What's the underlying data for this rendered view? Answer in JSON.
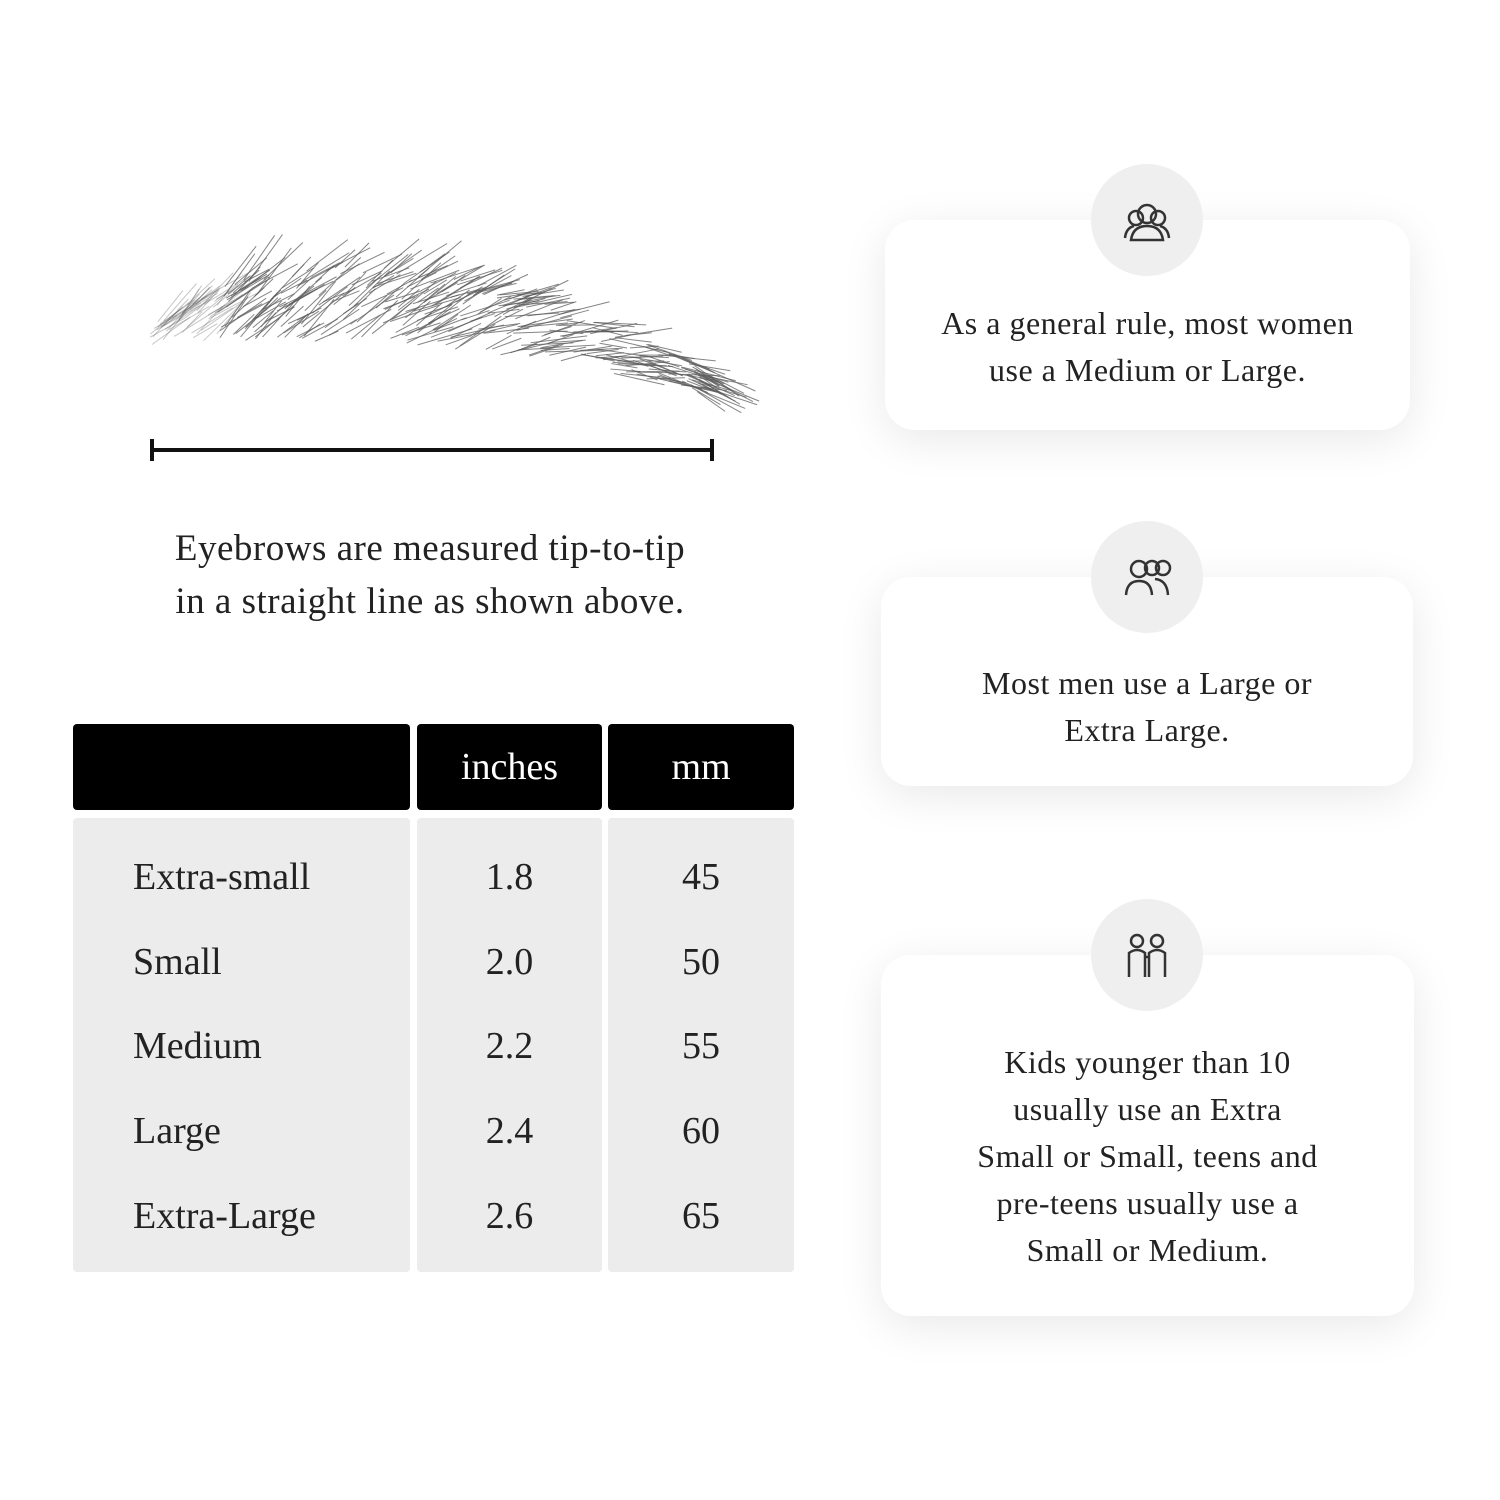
{
  "caption": {
    "lines": [
      "Eyebrows are measured tip-to-tip",
      "in a straight line as shown above."
    ]
  },
  "table": {
    "header": [
      "inches",
      "mm"
    ],
    "rows": [
      [
        "Extra-small",
        "1.8",
        "45"
      ],
      [
        "Small",
        "2.0",
        "50"
      ],
      [
        "Medium",
        "2.2",
        "55"
      ],
      [
        "Large",
        "2.4",
        "60"
      ],
      [
        "Extra-Large",
        "2.6",
        "65"
      ]
    ]
  },
  "cards": [
    {
      "lines": [
        "As a general rule, most women",
        "use a Medium or Large."
      ]
    },
    {
      "lines": [
        "Most men use a Large or",
        "Extra Large."
      ]
    },
    {
      "lines": [
        "Kids younger than 10",
        "usually use an Extra",
        "Small or Small, teens and",
        "pre-teens usually use a",
        "Small or Medium."
      ]
    }
  ]
}
